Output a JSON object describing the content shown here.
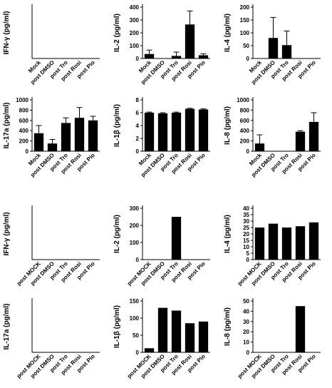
{
  "chart_data": [
    {
      "type": "bar",
      "ylabel": "IFN-γ (pg/ml)",
      "categories": [
        "Mock",
        "post DMSO",
        "post Tro",
        "post Rosi",
        "post Pio"
      ],
      "values": [
        null,
        null,
        null,
        null,
        null
      ],
      "color": "#000000"
    },
    {
      "type": "bar",
      "ylabel": "IL-2 (pg/ml)",
      "categories": [
        "Mock",
        "post DMSO",
        "post Tro",
        "post Rosi",
        "post Pio"
      ],
      "values": [
        35,
        0,
        20,
        265,
        25
      ],
      "errors": [
        30,
        null,
        30,
        105,
        12
      ],
      "color": "#000000",
      "ylim": [
        0,
        400
      ],
      "yticks": [
        0,
        100,
        200,
        300,
        400
      ]
    },
    {
      "type": "bar",
      "ylabel": "IL-4 (pg/ml)",
      "categories": [
        "Mock",
        "post DMSO",
        "post Tro",
        "post Rosi",
        "post Pio"
      ],
      "values": [
        0,
        80,
        52,
        0,
        0
      ],
      "errors": [
        null,
        80,
        55,
        null,
        null
      ],
      "color": "#000000",
      "ylim": [
        0,
        200
      ],
      "yticks": [
        0,
        50,
        100,
        150,
        200
      ]
    },
    {
      "type": "bar",
      "ylabel": "IL-17a (pg/ml)",
      "categories": [
        "Mock",
        "post DMSO",
        "post Tro",
        "post Rosi",
        "post Pio"
      ],
      "values": [
        350,
        150,
        550,
        650,
        600
      ],
      "errors": [
        150,
        80,
        100,
        200,
        80
      ],
      "color": "#000000",
      "ylim": [
        0,
        1000
      ],
      "yticks": [
        0,
        200,
        400,
        600,
        800,
        1000
      ]
    },
    {
      "type": "bar",
      "ylabel": "IL-1β (pg/ml)",
      "categories": [
        "Mock",
        "post DMSO",
        "post Tro",
        "post Rosi",
        "post Pio"
      ],
      "values": [
        6.0,
        5.9,
        6.0,
        6.6,
        6.5
      ],
      "errors": [
        0.1,
        0.1,
        0.1,
        0.1,
        0.1
      ],
      "color": "#000000",
      "ylim": [
        0,
        8
      ],
      "yticks": [
        0,
        2,
        4,
        6,
        8
      ]
    },
    {
      "type": "bar",
      "ylabel": "IL-8 (pg/ml)",
      "categories": [
        "Mock",
        "post DMSO",
        "post Tro",
        "post Rosi",
        "post Pio"
      ],
      "values": [
        150,
        0,
        0,
        380,
        570
      ],
      "errors": [
        170,
        null,
        null,
        20,
        180
      ],
      "color": "#000000",
      "ylim": [
        0,
        1000
      ],
      "yticks": [
        0,
        200,
        400,
        600,
        800,
        1000
      ]
    },
    {
      "type": "bar",
      "ylabel": "IFN-γ (pg/ml)",
      "categories": [
        "post MOCK",
        "post DMSO",
        "post Tro",
        "post Rosi",
        "post Pio"
      ],
      "values": [
        null,
        null,
        null,
        null,
        null
      ],
      "color": "#000000"
    },
    {
      "type": "bar",
      "ylabel": "IL-2 (pg/ml)",
      "categories": [
        "post MOCK",
        "post DMSO",
        "post Tro",
        "post Rosi",
        "post Pio"
      ],
      "values": [
        0,
        0,
        250,
        0,
        0
      ],
      "color": "#000000",
      "ylim": [
        0,
        300
      ],
      "yticks": [
        0,
        100,
        200,
        300
      ]
    },
    {
      "type": "bar",
      "ylabel": "IL-4 (pg/ml)",
      "categories": [
        "post MOCK",
        "post DMSO",
        "post Tro",
        "post Rosi",
        "post Pio"
      ],
      "values": [
        25,
        28,
        25,
        26,
        29
      ],
      "color": "#000000",
      "ylim": [
        0,
        40
      ],
      "yticks": [
        0,
        5,
        10,
        15,
        20,
        25,
        30,
        35,
        40
      ]
    },
    {
      "type": "bar",
      "ylabel": "IL-17a (pg/ml)",
      "categories": [
        "post MOCK",
        "post DMSO",
        "post Tro",
        "post Rosi",
        "post Pio"
      ],
      "values": [
        null,
        null,
        null,
        null,
        null
      ],
      "color": "#000000"
    },
    {
      "type": "bar",
      "ylabel": "IL-1β (pg/ml)",
      "categories": [
        "post MOCK",
        "post DMSO",
        "post Tro",
        "post Rosi",
        "post Pio"
      ],
      "values": [
        12,
        130,
        122,
        85,
        90
      ],
      "color": "#000000",
      "ylim": [
        0,
        150
      ],
      "yticks": [
        0,
        50,
        100,
        150
      ]
    },
    {
      "type": "bar",
      "ylabel": "IL-8 (pg/ml)",
      "categories": [
        "post MOCK",
        "post DMSO",
        "post Tro",
        "post Rosi",
        "post Pio"
      ],
      "values": [
        0,
        0,
        0,
        45,
        0
      ],
      "color": "#000000",
      "ylim": [
        0,
        50
      ],
      "yticks": [
        0,
        10,
        20,
        30,
        40,
        50
      ]
    }
  ]
}
